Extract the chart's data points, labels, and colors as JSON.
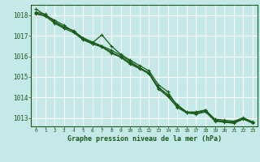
{
  "title": "Graphe pression niveau de la mer (hPa)",
  "background_color": "#c5e8e8",
  "grid_color": "#ffffff",
  "line_color": "#1a5c1a",
  "xlabel_color": "#1a5c1a",
  "xlim": [
    -0.5,
    23.5
  ],
  "ylim": [
    1012.6,
    1018.5
  ],
  "yticks": [
    1013,
    1014,
    1015,
    1016,
    1017,
    1018
  ],
  "xticks": [
    0,
    1,
    2,
    3,
    4,
    5,
    6,
    7,
    8,
    9,
    10,
    11,
    12,
    13,
    14,
    15,
    16,
    17,
    18,
    19,
    20,
    21,
    22,
    23
  ],
  "series": [
    [
      1018.3,
      1018.0,
      1017.75,
      1017.5,
      1017.2,
      1016.9,
      1016.7,
      1016.5,
      1016.3,
      1016.05,
      1015.75,
      1015.45,
      1015.2,
      1014.5,
      1014.15,
      1013.65,
      1013.3,
      1013.3,
      1013.4,
      1012.9,
      1012.85,
      1012.8,
      1013.0,
      1012.8
    ],
    [
      1018.15,
      1018.05,
      1017.65,
      1017.4,
      1017.25,
      1016.88,
      1016.65,
      1017.05,
      1016.5,
      1016.1,
      1015.82,
      1015.55,
      1015.3,
      1014.62,
      1014.28,
      1013.58,
      1013.28,
      1013.28,
      1013.38,
      1012.95,
      1012.9,
      1012.85,
      1013.02,
      1012.82
    ],
    [
      1018.05,
      1017.95,
      1017.6,
      1017.35,
      1017.15,
      1016.8,
      1016.6,
      1016.45,
      1016.15,
      1015.95,
      1015.62,
      1015.4,
      1015.15,
      1014.42,
      1014.05,
      1013.52,
      1013.25,
      1013.2,
      1013.3,
      1012.85,
      1012.8,
      1012.75,
      1012.95,
      1012.75
    ],
    [
      1018.1,
      1018.0,
      1017.68,
      1017.42,
      1017.22,
      1016.84,
      1016.62,
      1016.5,
      1016.2,
      1015.98,
      1015.68,
      1015.44,
      1015.18,
      1014.44,
      1014.08,
      1013.54,
      1013.28,
      1013.22,
      1013.34,
      1012.88,
      1012.82,
      1012.78,
      1012.98,
      1012.78
    ]
  ]
}
